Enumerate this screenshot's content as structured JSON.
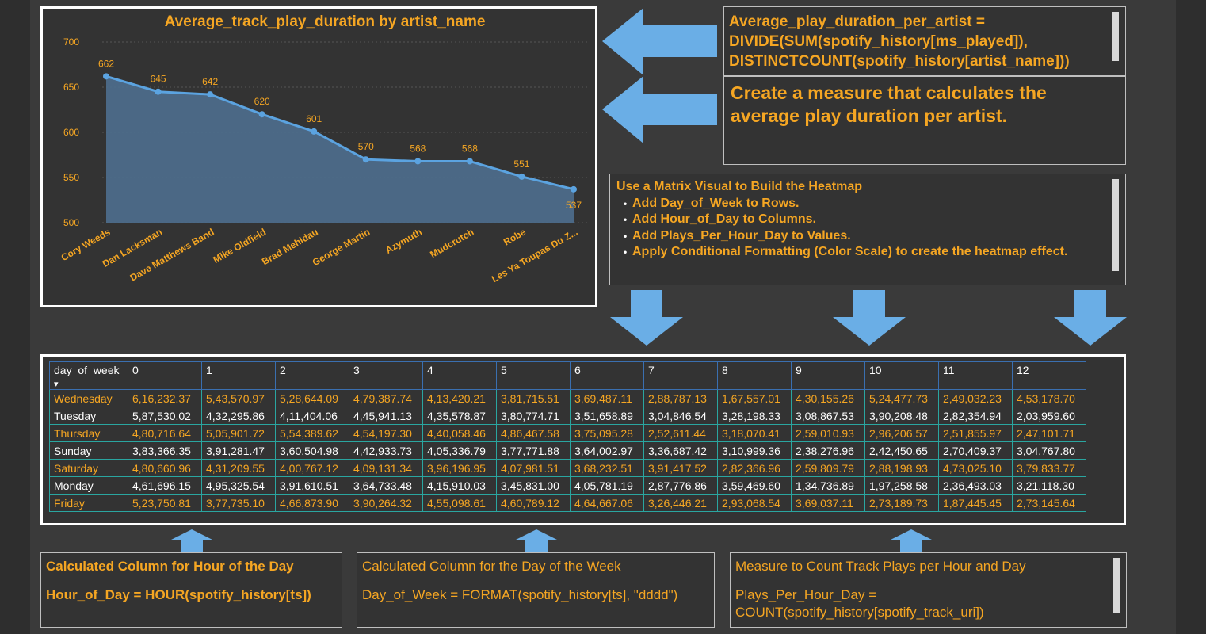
{
  "chart": {
    "title": "Average_track_play_duration by artist_name",
    "y_ticks": [
      "700",
      "650",
      "600",
      "550",
      "500"
    ]
  },
  "chart_data": {
    "type": "area",
    "title": "Average_track_play_duration by artist_name",
    "categories": [
      "Cory Weeds",
      "Dan Lacksman",
      "Dave Matthews Band",
      "Mike Oldfield",
      "Brad Mehldau",
      "George Martin",
      "Azymuth",
      "Mudcrutch",
      "Robe",
      "Les Ya Toupas Du Z..."
    ],
    "values": [
      662,
      645,
      642,
      620,
      601,
      570,
      568,
      568,
      551,
      537
    ],
    "ylim": [
      500,
      700
    ],
    "y_ticks": [
      500,
      550,
      600,
      650,
      700
    ],
    "data_labels": true,
    "grid": true,
    "colors": {
      "line": "#5ba3e0",
      "fill": "#4e6e8e",
      "labels": "#f5a623"
    }
  },
  "formula_box": {
    "lines": [
      "Average_play_duration_per_artist =",
      "DIVIDE(SUM(spotify_history[ms_played]),",
      "DISTINCTCOUNT(spotify_history[artist_name]))"
    ]
  },
  "desc_box": {
    "lines": [
      "Create a measure that calculates the",
      "average play duration per artist."
    ]
  },
  "steps_box": {
    "title": "Use a Matrix Visual to Build the Heatmap",
    "items": [
      "Add Day_of_Week to Rows.",
      "Add Hour_of_Day to Columns.",
      "Add Plays_Per_Hour_Day to Values.",
      "Apply Conditional Formatting (Color Scale) to create the heatmap effect."
    ]
  },
  "matrix": {
    "row_header": "day_of_week",
    "sort_indicator": "▾",
    "columns": [
      "0",
      "1",
      "2",
      "3",
      "4",
      "5",
      "6",
      "7",
      "8",
      "9",
      "10",
      "11",
      "12"
    ],
    "rows": [
      {
        "day": "Wednesday",
        "style": "orange",
        "values": [
          "6,16,232.37",
          "5,43,570.97",
          "5,28,644.09",
          "4,79,387.74",
          "4,13,420.21",
          "3,81,715.51",
          "3,69,487.11",
          "2,88,787.13",
          "1,67,557.01",
          "4,30,155.26",
          "5,24,477.73",
          "2,49,032.23",
          "4,53,178.70"
        ]
      },
      {
        "day": "Tuesday",
        "style": "white",
        "values": [
          "5,87,530.02",
          "4,32,295.86",
          "4,11,404.06",
          "4,45,941.13",
          "4,35,578.87",
          "3,80,774.71",
          "3,51,658.89",
          "3,04,846.54",
          "3,28,198.33",
          "3,08,867.53",
          "3,90,208.48",
          "2,82,354.94",
          "2,03,959.60"
        ]
      },
      {
        "day": "Thursday",
        "style": "orange",
        "values": [
          "4,80,716.64",
          "5,05,901.72",
          "5,54,389.62",
          "4,54,197.30",
          "4,40,058.46",
          "4,86,467.58",
          "3,75,095.28",
          "2,52,611.44",
          "3,18,070.41",
          "2,59,010.93",
          "2,96,206.57",
          "2,51,855.97",
          "2,47,101.71"
        ]
      },
      {
        "day": "Sunday",
        "style": "white",
        "values": [
          "3,83,366.35",
          "3,91,281.47",
          "3,60,504.98",
          "4,42,933.73",
          "4,05,336.79",
          "3,77,771.88",
          "3,64,002.97",
          "3,36,687.42",
          "3,10,999.36",
          "2,38,276.96",
          "2,42,450.65",
          "2,70,409.37",
          "3,04,767.80"
        ]
      },
      {
        "day": "Saturday",
        "style": "orange",
        "values": [
          "4,80,660.96",
          "4,31,209.55",
          "4,00,767.12",
          "4,09,131.34",
          "3,96,196.95",
          "4,07,981.51",
          "3,68,232.51",
          "3,91,417.52",
          "2,82,366.96",
          "2,59,809.79",
          "2,88,198.93",
          "4,73,025.10",
          "3,79,833.77"
        ]
      },
      {
        "day": "Monday",
        "style": "white",
        "values": [
          "4,61,696.15",
          "4,95,325.54",
          "3,91,610.51",
          "3,64,733.48",
          "4,15,910.03",
          "3,45,831.00",
          "4,05,781.19",
          "2,87,776.86",
          "3,59,469.60",
          "1,34,736.89",
          "1,97,258.58",
          "2,36,493.03",
          "3,21,118.30"
        ]
      },
      {
        "day": "Friday",
        "style": "orange",
        "values": [
          "5,23,750.81",
          "3,77,735.10",
          "4,66,873.90",
          "3,90,264.32",
          "4,55,098.61",
          "4,60,789.12",
          "4,64,667.06",
          "3,26,446.21",
          "2,93,068.54",
          "3,69,037.11",
          "2,73,189.73",
          "1,87,445.45",
          "2,73,145.64"
        ]
      }
    ]
  },
  "bottom": {
    "hour": {
      "title": "Calculated Column for Hour of the Day",
      "formula": "Hour_of_Day = HOUR(spotify_history[ts])"
    },
    "day": {
      "title": "Calculated Column for the Day of the Week",
      "formula": "Day_of_Week = FORMAT(spotify_history[ts], \"dddd\")"
    },
    "plays": {
      "title": "Measure to Count Track Plays per Hour and Day",
      "formula_line1": "Plays_Per_Hour_Day =",
      "formula_line2": "COUNT(spotify_history[spotify_track_uri])"
    }
  },
  "colors": {
    "accent": "#f5a623",
    "arrow": "#6aaee6",
    "panel_border": "#ffffff",
    "grid_cell": "#2aa6a0"
  }
}
